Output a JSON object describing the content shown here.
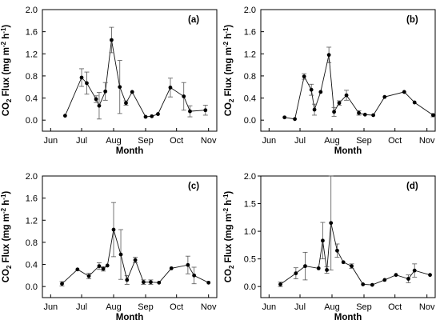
{
  "figure": {
    "x_months": [
      "Jun",
      "Jul",
      "Aug",
      "Sep",
      "Oct",
      "Nov"
    ],
    "xlabel": "Month",
    "ylabel": "CO2 Flux (mg m-2 h-1)"
  },
  "chart_data": [
    {
      "type": "line",
      "panel_label": "(a)",
      "xlabel": "Month",
      "ylabel": "CO2 Flux (mg m-2 h-1)",
      "x_ticks": [
        "Jun",
        "Jul",
        "Aug",
        "Sep",
        "Oct",
        "Nov"
      ],
      "y_ticks": [
        "0.0",
        "0.4",
        "0.8",
        "1.2",
        "1.6",
        "2.0"
      ],
      "ylim": [
        -0.2,
        2.0
      ],
      "grid": false,
      "legend": "none",
      "series": [
        {
          "x": [
            "2013-06-15",
            "2013-07-01",
            "2013-07-06",
            "2013-07-15",
            "2013-07-18",
            "2013-07-24",
            "2013-07-30",
            "2013-08-07",
            "2013-08-13",
            "2013-08-19",
            "2013-09-01",
            "2013-09-07",
            "2013-09-13",
            "2013-09-25",
            "2013-10-08",
            "2013-10-14",
            "2013-10-29"
          ],
          "y": [
            0.08,
            0.77,
            0.67,
            0.38,
            0.26,
            0.52,
            1.45,
            0.6,
            0.31,
            0.51,
            0.06,
            0.07,
            0.11,
            0.59,
            0.43,
            0.16,
            0.18
          ],
          "error": [
            0,
            0.16,
            0.2,
            0.06,
            0.24,
            0.16,
            0.23,
            0.48,
            0.04,
            0,
            0,
            0,
            0,
            0.17,
            0.25,
            0.1,
            0.09
          ]
        }
      ]
    },
    {
      "type": "line",
      "panel_label": "(b)",
      "xlabel": "Month",
      "ylabel": "CO2 Flux (mg m-2 h-1)",
      "x_ticks": [
        "Jun",
        "Jul",
        "Aug",
        "Sep",
        "Oct",
        "Nov"
      ],
      "y_ticks": [
        "0.0",
        "0.4",
        "0.8",
        "1.2",
        "1.6",
        "2.0"
      ],
      "ylim": [
        -0.2,
        2.0
      ],
      "grid": false,
      "legend": "none",
      "series": [
        {
          "x": [
            "2013-06-16",
            "2013-06-26",
            "2013-07-05",
            "2013-07-12",
            "2013-07-15",
            "2013-07-21",
            "2013-07-29",
            "2013-08-03",
            "2013-08-08",
            "2013-08-15",
            "2013-08-27",
            "2013-09-02",
            "2013-09-10",
            "2013-09-21",
            "2013-10-10",
            "2013-10-20",
            "2013-11-07"
          ],
          "y": [
            0.05,
            0.02,
            0.79,
            0.55,
            0.19,
            0.51,
            1.18,
            0.15,
            0.31,
            0.45,
            0.13,
            0.1,
            0.09,
            0.42,
            0.51,
            0.32,
            0.09
          ],
          "error": [
            0,
            0,
            0.05,
            0.1,
            0.1,
            0,
            0.14,
            0.08,
            0.04,
            0.09,
            0.04,
            0,
            0,
            0,
            0,
            0,
            0.03
          ]
        }
      ]
    },
    {
      "type": "line",
      "panel_label": "(c)",
      "xlabel": "Month",
      "ylabel": "CO2 Flux (mg m-2 h-1)",
      "x_ticks": [
        "Jun",
        "Jul",
        "Aug",
        "Sep",
        "Oct",
        "Nov"
      ],
      "y_ticks": [
        "0.0",
        "0.4",
        "0.8",
        "1.2",
        "1.6",
        "2.0"
      ],
      "ylim": [
        -0.2,
        2.0
      ],
      "grid": false,
      "legend": "none",
      "series": [
        {
          "x": [
            "2013-06-12",
            "2013-06-27",
            "2013-07-08",
            "2013-07-18",
            "2013-07-22",
            "2013-07-26",
            "2013-08-01",
            "2013-08-08",
            "2013-08-14",
            "2013-08-22",
            "2013-08-30",
            "2013-09-06",
            "2013-09-14",
            "2013-09-26",
            "2013-10-12",
            "2013-10-18",
            "2013-11-01"
          ],
          "y": [
            0.05,
            0.31,
            0.19,
            0.37,
            0.32,
            0.38,
            1.03,
            0.58,
            0.12,
            0.48,
            0.08,
            0.08,
            0.07,
            0.33,
            0.39,
            0.2,
            0.07
          ],
          "error": [
            0.04,
            0,
            0.05,
            0.06,
            0.04,
            0,
            0.49,
            0.45,
            0.08,
            0.05,
            0.04,
            0.04,
            0,
            0,
            0.16,
            0.15,
            0
          ]
        }
      ]
    },
    {
      "type": "line",
      "panel_label": "(d)",
      "xlabel": "Month",
      "ylabel": "CO2 Flux (mg m-2 h-1)",
      "x_ticks": [
        "Jun",
        "Jul",
        "Aug",
        "Sep",
        "Oct",
        "Nov"
      ],
      "y_ticks": [
        "0.0",
        "0.5",
        "1.0",
        "1.5",
        "2.0"
      ],
      "ylim": [
        -0.2,
        2.0
      ],
      "grid": false,
      "legend": "none",
      "series": [
        {
          "x": [
            "2013-06-12",
            "2013-06-27",
            "2013-07-06",
            "2013-07-19",
            "2013-07-23",
            "2013-07-27",
            "2013-07-31",
            "2013-08-06",
            "2013-08-12",
            "2013-08-20",
            "2013-08-31",
            "2013-09-09",
            "2013-09-21",
            "2013-10-02",
            "2013-10-14",
            "2013-10-20",
            "2013-11-04"
          ],
          "y": [
            0.04,
            0.24,
            0.37,
            0.33,
            0.83,
            0.3,
            1.15,
            0.65,
            0.44,
            0.37,
            0.04,
            0.03,
            0.12,
            0.21,
            0.14,
            0.29,
            0.21
          ],
          "error": [
            0.04,
            0.1,
            0.25,
            0,
            0.33,
            0.06,
            0.85,
            0.12,
            0,
            0.04,
            0,
            0,
            0,
            0,
            0.07,
            0.12,
            0
          ]
        }
      ]
    }
  ]
}
